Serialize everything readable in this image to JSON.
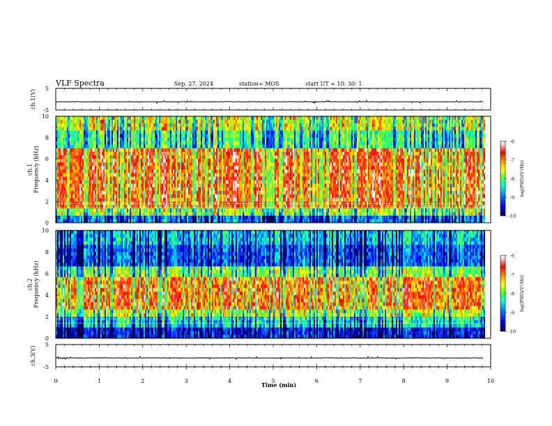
{
  "header": {
    "title": "VLF Spectra",
    "date": "Sep. 27, 2024",
    "station": "station= MOS",
    "start": "start  UT =   10: 30: 1"
  },
  "chart_data": [
    {
      "type": "line",
      "name": "ch1-waveform",
      "ylabel": "ch.1(V)",
      "ylim": [
        -5,
        5
      ],
      "yticks": [
        "5",
        "-5"
      ],
      "xlim": [
        0,
        10
      ],
      "level": -1.2
    },
    {
      "type": "heatmap",
      "name": "ch1-spectrogram",
      "ylabel": "ch.1\nFrequency (kHz)",
      "ylim": [
        0,
        10
      ],
      "yticks": [
        "0",
        "2",
        "4",
        "6",
        "8",
        "10"
      ],
      "xlim": [
        0,
        9.85
      ],
      "colorbar": {
        "label": "log(PSD)(V²/Hz)",
        "range": [
          -10,
          -6
        ],
        "ticks": [
          "-6",
          "-7",
          "-8",
          "-9",
          "-10"
        ]
      },
      "profile": "broadband"
    },
    {
      "type": "heatmap",
      "name": "ch2-spectrogram",
      "ylabel": "ch.2\nFrequency (kHz)",
      "ylim": [
        0,
        10
      ],
      "yticks": [
        "0",
        "2",
        "4",
        "6",
        "8",
        "10"
      ],
      "xlim": [
        0,
        9.85
      ],
      "colorbar": {
        "label": "log(PSD)(V²/Hz)",
        "range": [
          -10,
          -6
        ],
        "ticks": [
          "-6",
          "-7",
          "-8",
          "-9",
          "-10"
        ]
      },
      "profile": "midband"
    },
    {
      "type": "line",
      "name": "ch3-waveform",
      "ylabel": "ch.3(V)",
      "ylim": [
        -5,
        5
      ],
      "yticks": [
        "5",
        "-5"
      ],
      "xlim": [
        0,
        10
      ],
      "level": -1.0
    }
  ],
  "xaxis": {
    "label": "Time  (min)",
    "ticks": [
      "0",
      "1",
      "2",
      "3",
      "4",
      "5",
      "6",
      "7",
      "8",
      "9",
      "10"
    ],
    "range": [
      0,
      10
    ]
  },
  "colormap": [
    "#00004b",
    "#0000ff",
    "#0080ff",
    "#00ffd0",
    "#40ff40",
    "#ffff00",
    "#ff8000",
    "#ff0000",
    "#ffc0c0",
    "#ffffff"
  ]
}
